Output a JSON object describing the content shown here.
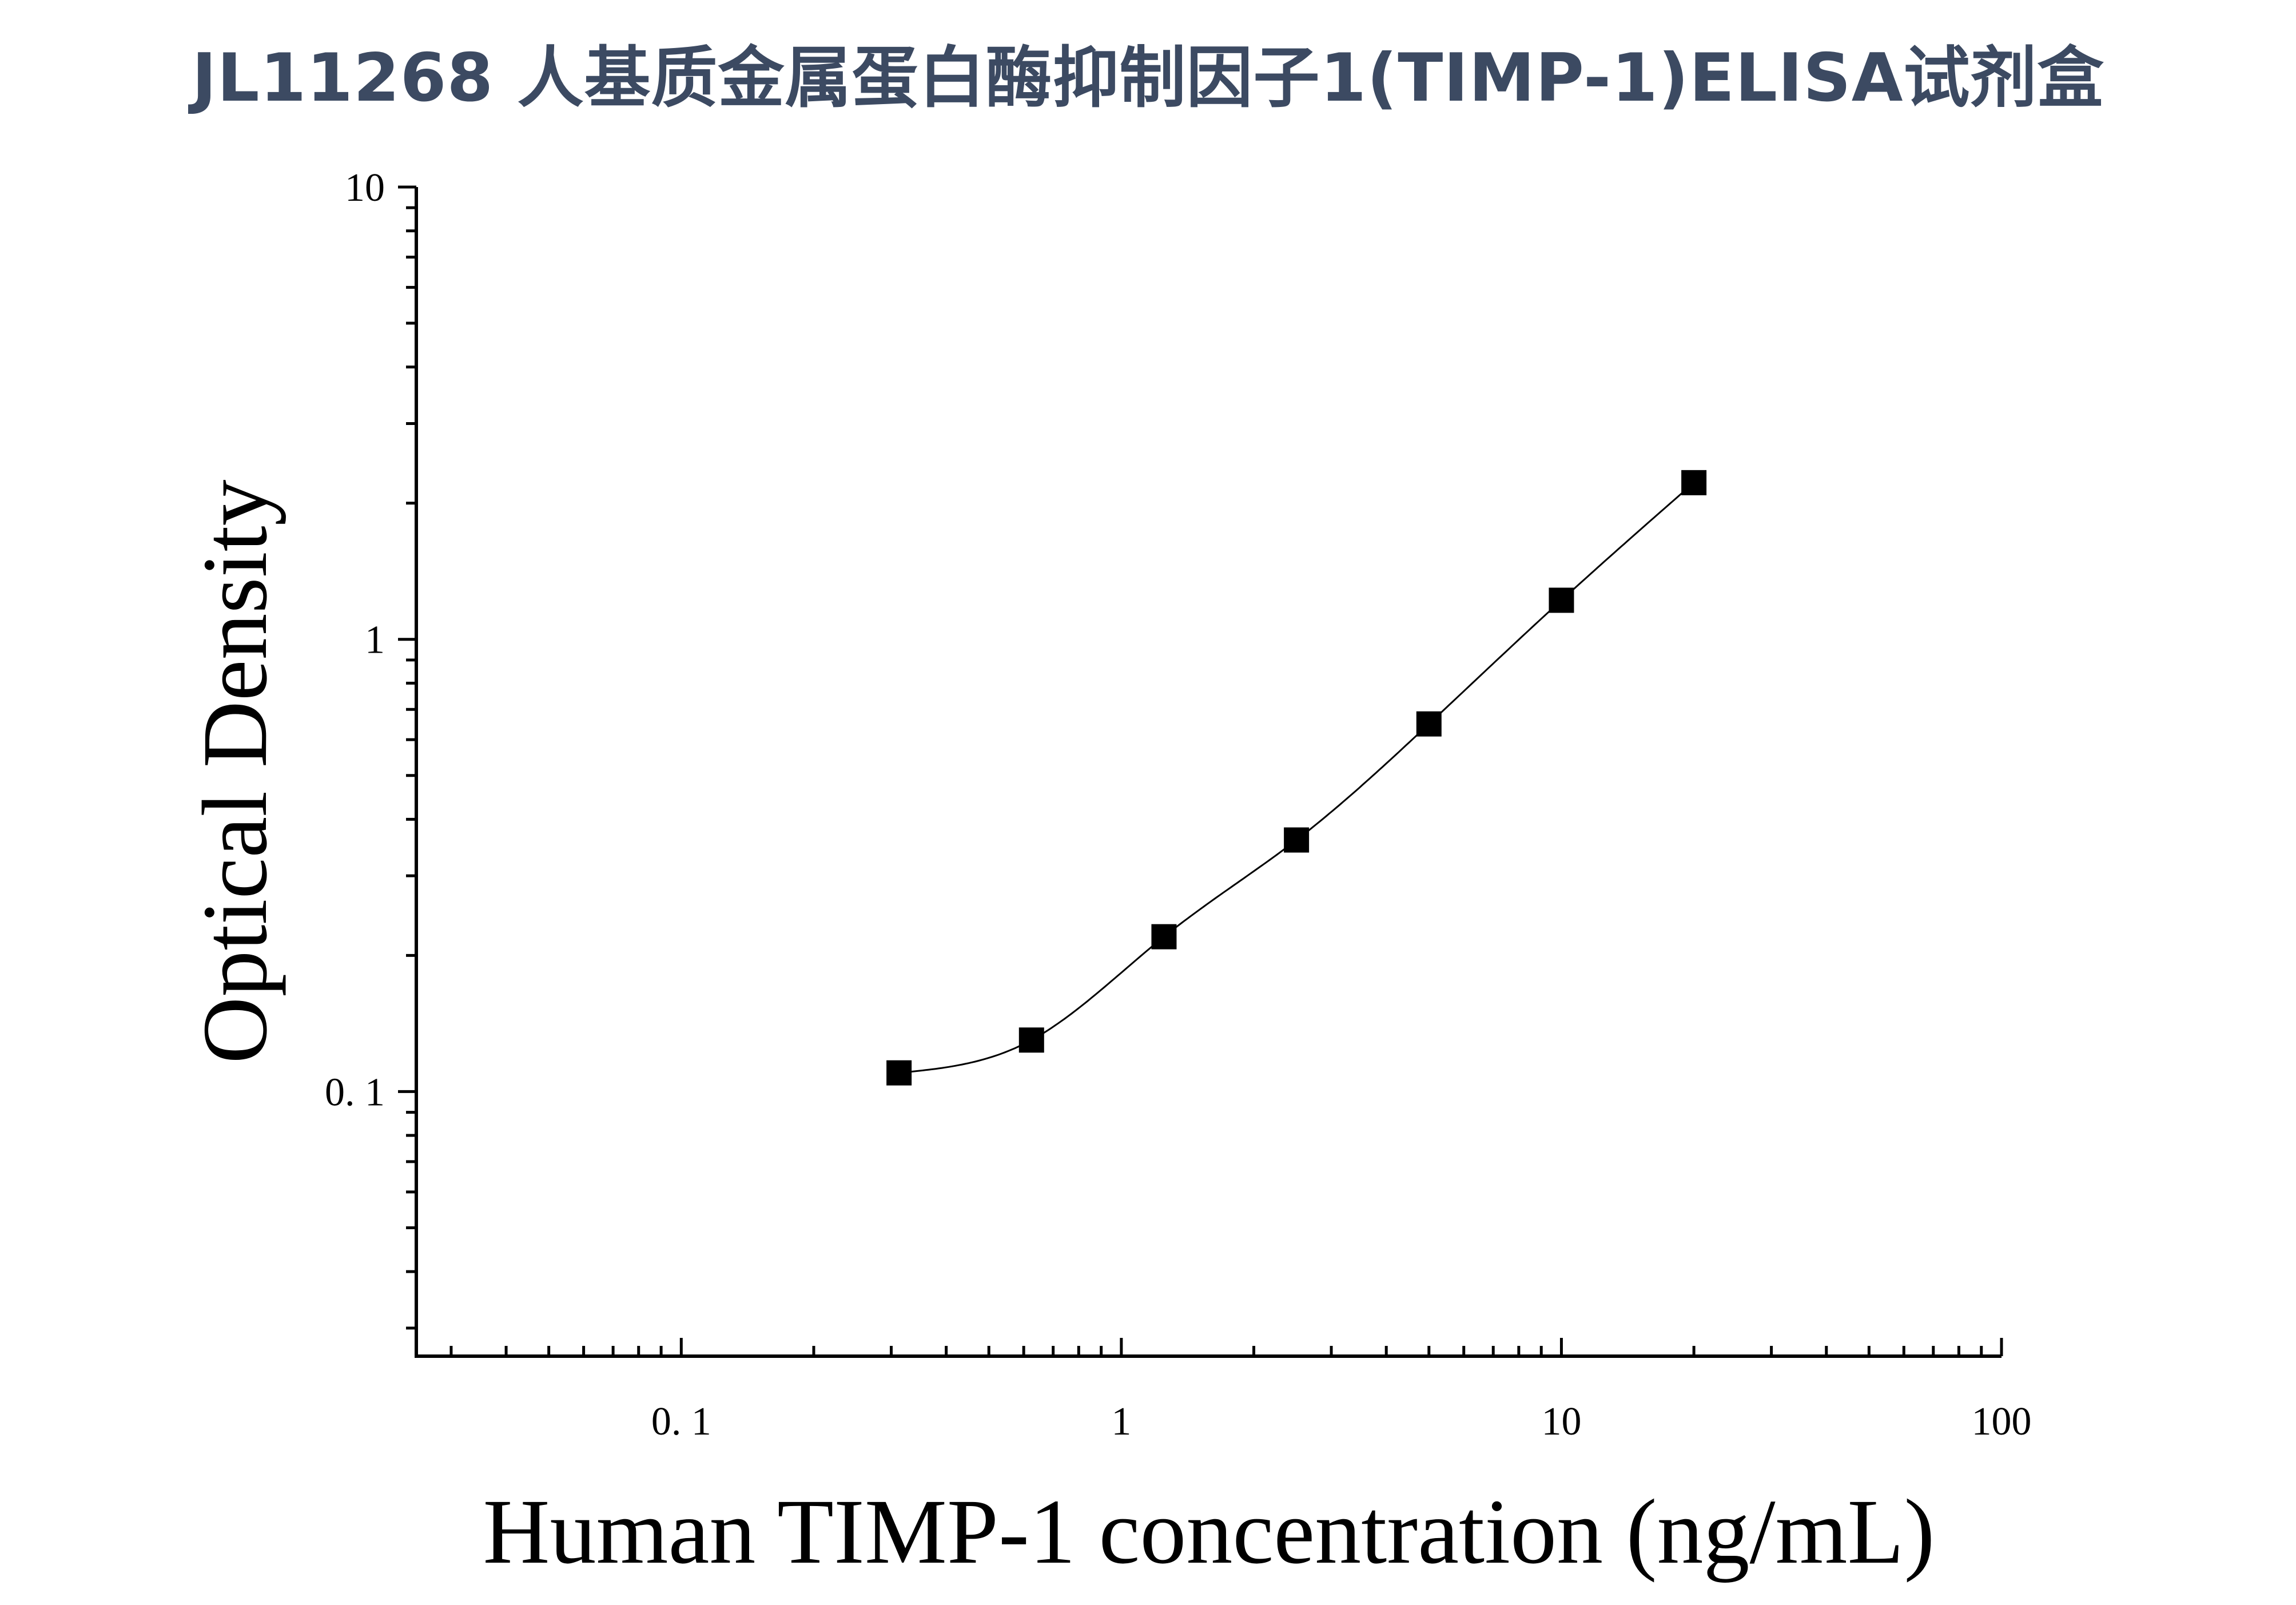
{
  "title": "JL11268 人基质金属蛋白酶抑制因子1(TIMP-1)ELISA试剂盒",
  "chart_data": {
    "type": "scatter",
    "xlabel": "Human TIMP-1 concentration (ng/mL)",
    "ylabel": "Optical Density",
    "x_scale": "log",
    "y_scale": "log",
    "xlim": [
      0.025,
      100
    ],
    "ylim": [
      0.026,
      10
    ],
    "x_ticks": [
      "0. 1",
      "1",
      "10",
      "100"
    ],
    "y_ticks": [
      "0. 1",
      "1",
      "10"
    ],
    "grid": false,
    "series": [
      {
        "x": [
          0.3125,
          0.625,
          1.25,
          2.5,
          5,
          10,
          20
        ],
        "y": [
          0.11,
          0.13,
          0.22,
          0.36,
          0.65,
          1.22,
          2.22
        ],
        "marker": "square",
        "fit_line": true
      }
    ]
  }
}
